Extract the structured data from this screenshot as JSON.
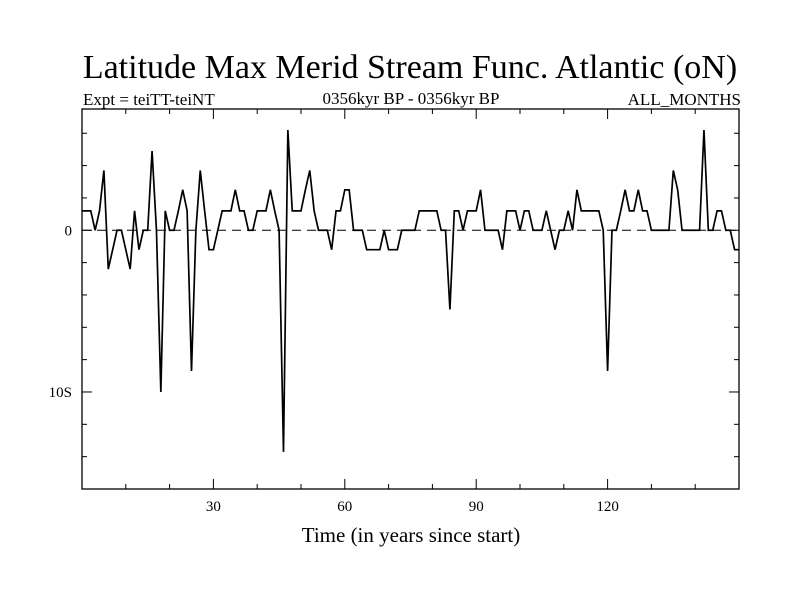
{
  "chart_data": {
    "type": "line",
    "title": "Latitude Max Merid Stream Func. Atlantic (oN)",
    "subtitle_left": "Expt = teiTT-teiNT",
    "subtitle_center": "0356kyr BP - 0356kyr BP",
    "subtitle_right": "ALL_MONTHS",
    "xlabel": "Time (in years since start)",
    "ylabel": "",
    "xlim": [
      0,
      150
    ],
    "ylim": [
      -16,
      7.5
    ],
    "x_ticks": [
      {
        "value": 30,
        "label": "30"
      },
      {
        "value": 60,
        "label": "60"
      },
      {
        "value": 90,
        "label": "90"
      },
      {
        "value": 120,
        "label": "120"
      }
    ],
    "y_ticks": [
      {
        "value": 0,
        "label": "0"
      },
      {
        "value": -10,
        "label": "10S"
      }
    ],
    "reference_line": {
      "value": 0,
      "style": "dashed"
    },
    "series": [
      {
        "name": "latitude",
        "x": [
          0,
          1,
          2,
          3,
          4,
          5,
          6,
          7,
          8,
          9,
          10,
          11,
          12,
          13,
          14,
          15,
          16,
          17,
          18,
          19,
          20,
          21,
          22,
          23,
          24,
          25,
          26,
          27,
          28,
          29,
          30,
          31,
          32,
          33,
          34,
          35,
          36,
          37,
          38,
          39,
          40,
          41,
          42,
          43,
          44,
          45,
          46,
          47,
          48,
          49,
          50,
          51,
          52,
          53,
          54,
          55,
          56,
          57,
          58,
          59,
          60,
          61,
          62,
          63,
          64,
          65,
          66,
          67,
          68,
          69,
          70,
          71,
          72,
          73,
          74,
          75,
          76,
          77,
          78,
          79,
          80,
          81,
          82,
          83,
          84,
          85,
          86,
          87,
          88,
          89,
          90,
          91,
          92,
          93,
          94,
          95,
          96,
          97,
          98,
          99,
          100,
          101,
          102,
          103,
          104,
          105,
          106,
          107,
          108,
          109,
          110,
          111,
          112,
          113,
          114,
          115,
          116,
          117,
          118,
          119,
          120,
          121,
          122,
          123,
          124,
          125,
          126,
          127,
          128,
          129,
          130,
          131,
          132,
          133,
          134,
          135,
          136,
          137,
          138,
          139,
          140,
          141,
          142,
          143,
          144,
          145,
          146,
          147,
          148,
          149,
          150
        ],
        "values": [
          1.2,
          1.2,
          1.2,
          0,
          1.2,
          3.7,
          -2.4,
          -1.2,
          0,
          0,
          -1.2,
          -2.4,
          1.2,
          -1.2,
          0,
          0,
          4.9,
          0,
          -10,
          1.2,
          0,
          0,
          1.2,
          2.5,
          1.2,
          -8.7,
          0,
          3.7,
          1.2,
          -1.2,
          -1.2,
          0,
          1.2,
          1.2,
          1.2,
          2.5,
          1.2,
          1.2,
          0,
          0,
          1.2,
          1.2,
          1.2,
          2.5,
          1.2,
          0,
          -13.7,
          6.2,
          1.2,
          1.2,
          1.2,
          2.5,
          3.7,
          1.2,
          0,
          0,
          0,
          -1.2,
          1.2,
          1.2,
          2.5,
          2.5,
          0,
          0,
          0,
          -1.2,
          -1.2,
          -1.2,
          -1.2,
          0,
          -1.2,
          -1.2,
          -1.2,
          0,
          0,
          0,
          0,
          1.2,
          1.2,
          1.2,
          1.2,
          1.2,
          0,
          0,
          -4.9,
          1.2,
          1.2,
          0,
          1.2,
          1.2,
          1.2,
          2.5,
          0,
          0,
          0,
          0,
          -1.2,
          1.2,
          1.2,
          1.2,
          0,
          1.2,
          1.2,
          0,
          0,
          0,
          1.2,
          0,
          -1.2,
          0,
          0,
          1.2,
          0,
          2.5,
          1.2,
          1.2,
          1.2,
          1.2,
          1.2,
          0,
          -8.7,
          0,
          0,
          1.2,
          2.5,
          1.2,
          1.2,
          2.5,
          1.2,
          1.2,
          0,
          0,
          0,
          0,
          0,
          3.7,
          2.5,
          0,
          0,
          0,
          0,
          0,
          6.2,
          0,
          0,
          1.2,
          1.2,
          0,
          0,
          -1.2,
          -1.2
        ]
      }
    ]
  }
}
